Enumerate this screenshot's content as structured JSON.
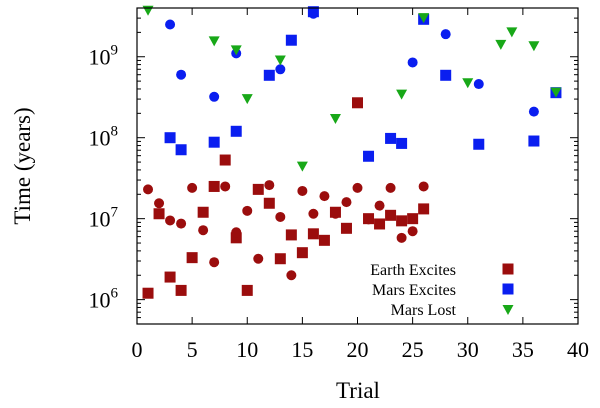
{
  "chart_data": {
    "type": "scatter",
    "xlabel": "Trial",
    "ylabel": "Time (years)",
    "xlim": [
      0,
      40
    ],
    "ylim": [
      500000,
      4000000000
    ],
    "y_scale": "log",
    "grid": false,
    "legend_position": "bottom-right",
    "x_ticks": [
      0,
      5,
      10,
      15,
      20,
      25,
      30,
      35,
      40
    ],
    "y_ticks": [
      {
        "base": "10",
        "exp": "6",
        "value": 1000000
      },
      {
        "base": "10",
        "exp": "7",
        "value": 10000000
      },
      {
        "base": "10",
        "exp": "8",
        "value": 100000000
      },
      {
        "base": "10",
        "exp": "9",
        "value": 1000000000
      }
    ],
    "series": [
      {
        "name": "Earth Excites",
        "color": "#9b0d0d",
        "marker": "square-and-circle",
        "squares": [
          [
            1,
            1200000
          ],
          [
            2,
            11500000
          ],
          [
            3,
            1900000
          ],
          [
            4,
            1300000
          ],
          [
            5,
            3300000
          ],
          [
            6,
            12000000
          ],
          [
            7,
            25000000
          ],
          [
            8,
            53000000
          ],
          [
            9,
            5800000
          ],
          [
            10,
            1300000
          ],
          [
            11,
            23000000
          ],
          [
            12,
            15500000
          ],
          [
            13,
            3200000
          ],
          [
            14,
            6300000
          ],
          [
            15,
            3800000
          ],
          [
            16,
            6500000
          ],
          [
            17,
            5400000
          ],
          [
            18,
            12000000
          ],
          [
            19,
            7600000
          ],
          [
            20,
            270000000
          ],
          [
            21,
            10000000
          ],
          [
            22,
            8600000
          ],
          [
            23,
            11000000
          ],
          [
            24,
            9400000
          ],
          [
            25,
            10000000
          ],
          [
            26,
            13200000
          ]
        ],
        "circles": [
          [
            1,
            23000000
          ],
          [
            2,
            15500000
          ],
          [
            3,
            9500000
          ],
          [
            4,
            8700000
          ],
          [
            5,
            24000000
          ],
          [
            6,
            7200000
          ],
          [
            7,
            2900000
          ],
          [
            8,
            25000000
          ],
          [
            9,
            6800000
          ],
          [
            10,
            12500000
          ],
          [
            11,
            3200000
          ],
          [
            12,
            26000000
          ],
          [
            13,
            10500000
          ],
          [
            14,
            2000000
          ],
          [
            15,
            22000000
          ],
          [
            16,
            11500000
          ],
          [
            17,
            19000000
          ],
          [
            18,
            11500000
          ],
          [
            19,
            16000000
          ],
          [
            20,
            24000000
          ],
          [
            21,
            9800000
          ],
          [
            22,
            14500000
          ],
          [
            23,
            24000000
          ],
          [
            24,
            5800000
          ],
          [
            25,
            7000000
          ],
          [
            26,
            25000000
          ]
        ]
      },
      {
        "name": "Mars Excites",
        "color": "#0a1ef0",
        "marker": "square-and-circle",
        "squares": [
          [
            3,
            100000000
          ],
          [
            4,
            71000000
          ],
          [
            7,
            88000000
          ],
          [
            9,
            120000000
          ],
          [
            12,
            590000000
          ],
          [
            14,
            1600000000
          ],
          [
            16,
            3600000000
          ],
          [
            21,
            59000000
          ],
          [
            23,
            98000000
          ],
          [
            24,
            85000000
          ],
          [
            26,
            2900000000
          ],
          [
            28,
            590000000
          ],
          [
            31,
            83000000
          ],
          [
            36,
            91000000
          ],
          [
            38,
            360000000
          ]
        ],
        "circles": [
          [
            3,
            2500000000
          ],
          [
            4,
            600000000
          ],
          [
            7,
            320000000
          ],
          [
            9,
            1100000000
          ],
          [
            13,
            700000000
          ],
          [
            16,
            3400000000
          ],
          [
            25,
            850000000
          ],
          [
            28,
            1900000000
          ],
          [
            31,
            460000000
          ],
          [
            36,
            210000000
          ]
        ]
      },
      {
        "name": "Mars Lost",
        "color": "#18a818",
        "marker": "triangle-down",
        "points": [
          [
            1,
            3700000000
          ],
          [
            7,
            1550000000
          ],
          [
            9,
            1200000000
          ],
          [
            10,
            300000000
          ],
          [
            13,
            900000000
          ],
          [
            15,
            44000000
          ],
          [
            18,
            170000000
          ],
          [
            24,
            340000000
          ],
          [
            26,
            3000000000
          ],
          [
            30,
            470000000
          ],
          [
            33,
            1400000000
          ],
          [
            34,
            2000000000
          ],
          [
            36,
            1350000000
          ],
          [
            38,
            360000000
          ]
        ]
      }
    ]
  }
}
